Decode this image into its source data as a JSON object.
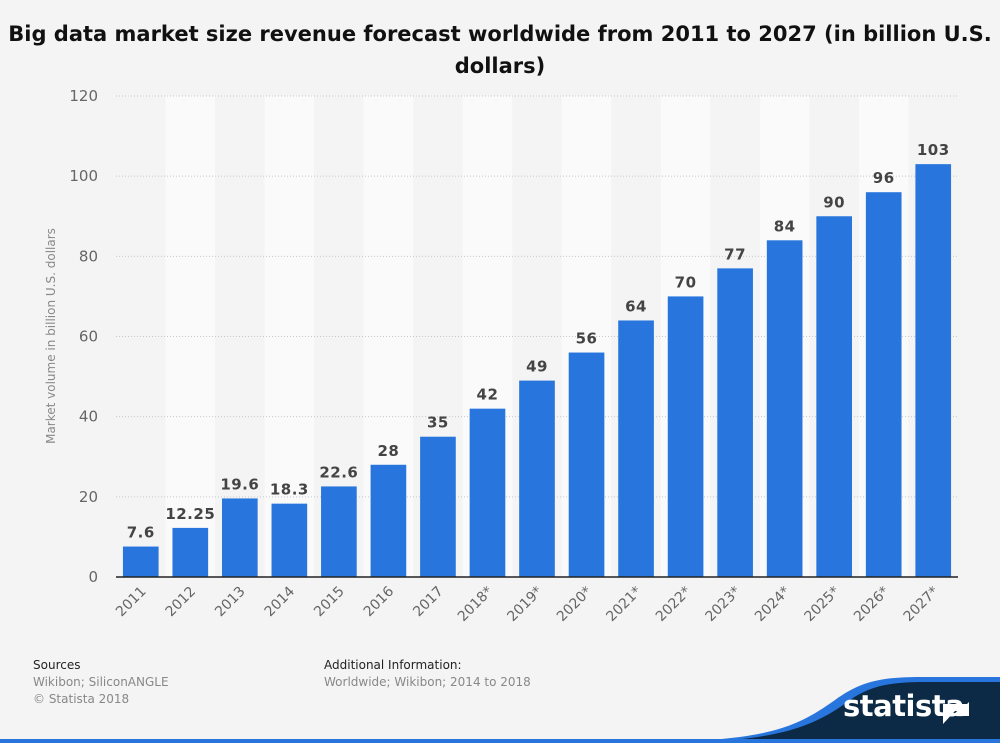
{
  "chart_data": {
    "type": "bar",
    "title": "Big data market size revenue forecast worldwide from 2011 to 2027 (in billion U.S. dollars)",
    "xlabel": "",
    "ylabel": "Market volume in billion U.S. dollars",
    "categories": [
      "2011",
      "2012",
      "2013",
      "2014",
      "2015",
      "2016",
      "2017",
      "2018*",
      "2019*",
      "2020*",
      "2021*",
      "2022*",
      "2023*",
      "2024*",
      "2025*",
      "2026*",
      "2027*"
    ],
    "values": [
      7.6,
      12.25,
      19.6,
      18.3,
      22.6,
      28,
      35,
      42,
      49,
      56,
      64,
      70,
      77,
      84,
      90,
      96,
      103
    ],
    "value_labels": [
      "7.6",
      "12.25",
      "19.6",
      "18.3",
      "22.6",
      "28",
      "35",
      "42",
      "49",
      "56",
      "64",
      "70",
      "77",
      "84",
      "90",
      "96",
      "103"
    ],
    "ylim": [
      0,
      120
    ],
    "yticks": [
      "0",
      "20",
      "40",
      "60",
      "80",
      "100",
      "120"
    ],
    "grid": true,
    "bar_color": "#2876dd"
  },
  "footer": {
    "sources_heading": "Sources",
    "sources": "Wikibon; SiliconANGLE",
    "copyright": "© Statista 2018",
    "additional_heading": "Additional Information:",
    "additional": "Worldwide; Wikibon; 2014 to 2018"
  },
  "brand": {
    "name": "statista"
  }
}
